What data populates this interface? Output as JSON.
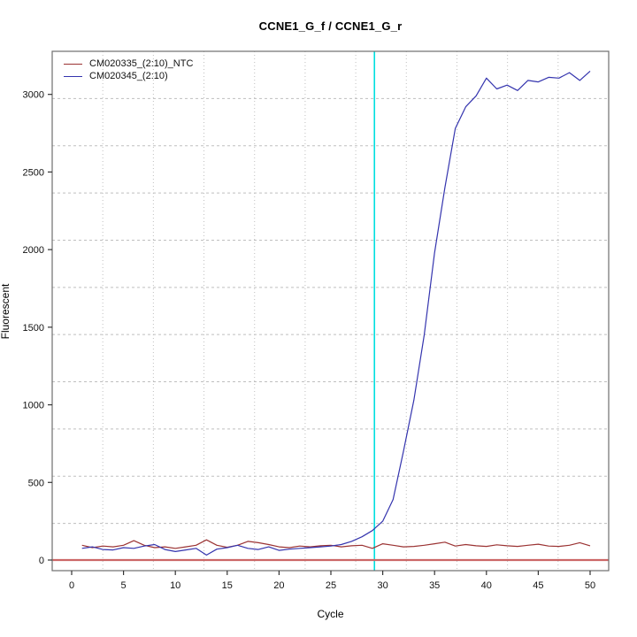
{
  "chart_data": {
    "type": "line",
    "title": "CCNE1_G_f / CCNE1_G_r",
    "xlabel": "Cycle",
    "ylabel": "Fluorescent",
    "x_cycles": {
      "from": 1,
      "to": 50
    },
    "xlim": [
      0,
      50
    ],
    "ylim": [
      0,
      3200
    ],
    "xticks": [
      0,
      5,
      10,
      15,
      20,
      25,
      30,
      35,
      40,
      45,
      50
    ],
    "yticks": [
      0,
      500,
      1000,
      1500,
      2000,
      2500,
      3000
    ],
    "grid": {
      "on": true,
      "style": "dotted",
      "color": "#BFBFBF",
      "nx": 11,
      "ny": 11
    },
    "legend_position": "top-left-inside",
    "series": [
      {
        "name": "CM020335_(2:10)_NTC",
        "color": "#9B3333",
        "values": [
          95,
          80,
          90,
          85,
          95,
          125,
          95,
          80,
          85,
          75,
          85,
          95,
          130,
          95,
          82,
          95,
          120,
          112,
          100,
          85,
          80,
          90,
          85,
          92,
          95,
          85,
          92,
          95,
          75,
          105,
          95,
          85,
          88,
          95,
          105,
          115,
          90,
          100,
          92,
          88,
          98,
          92,
          88,
          95,
          102,
          90,
          88,
          95,
          112,
          92
        ]
      },
      {
        "name": "CM020345_(2:10)",
        "color": "#3434AE",
        "values": [
          75,
          85,
          68,
          65,
          80,
          75,
          90,
          100,
          68,
          55,
          65,
          75,
          32,
          70,
          80,
          95,
          75,
          68,
          85,
          62,
          70,
          75,
          80,
          85,
          90,
          100,
          120,
          150,
          190,
          250,
          390,
          700,
          1030,
          1450,
          1980,
          2400,
          2780,
          2920,
          2990,
          3105,
          3035,
          3060,
          3025,
          3090,
          3080,
          3110,
          3105,
          3140,
          3090,
          3150
        ]
      }
    ],
    "annotations": {
      "threshold_cycle_vline": {
        "x": 29.2,
        "color": "#00DFDF"
      },
      "zero_hline": {
        "y": 0,
        "color": "#CC6666"
      }
    },
    "frame_color": "#6E6E6E",
    "tick_color": "#333333"
  }
}
